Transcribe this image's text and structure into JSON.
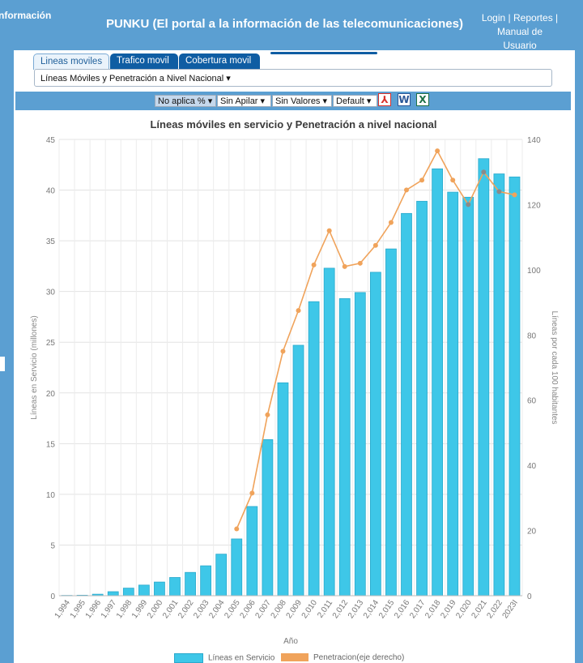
{
  "header": {
    "brand": "nformación",
    "title": "PUNKU (El portal a la información de las telecomunicaciones)",
    "links": [
      "Login",
      "Reportes",
      "Manual de Usuario"
    ]
  },
  "tabs": [
    {
      "label": "Lineas moviles",
      "active": true
    },
    {
      "label": "Trafico movil",
      "active": false
    },
    {
      "label": "Cobertura movil",
      "active": false
    }
  ],
  "report_dropdown": {
    "value": "Líneas Móviles y Penetración a Nivel Nacional"
  },
  "toolbar": {
    "selects": [
      "No aplica %",
      "Sin Apilar",
      "Sin Valores",
      "Default"
    ],
    "exports": [
      {
        "icon": "pdf-icon",
        "glyph": "⅄",
        "color": "#d9322b"
      },
      {
        "icon": "word-icon",
        "glyph": "W",
        "color": "#2b5797"
      },
      {
        "icon": "excel-icon",
        "glyph": "X",
        "color": "#1e7145"
      }
    ]
  },
  "chart_data": {
    "type": "bar",
    "title": "Líneas móviles en servicio y Penetración a nivel nacional",
    "xlabel": "Año",
    "ylabel": "Líneas en Servicio (millones)",
    "y2label": "Líneas por cada 100 habitantes",
    "categories": [
      "1,994",
      "1,995",
      "1,996",
      "1,997",
      "1,998",
      "1,999",
      "2,000",
      "2,001",
      "2,002",
      "2,003",
      "2,004",
      "2,005",
      "2,006",
      "2,007",
      "2,008",
      "2,009",
      "2,010",
      "2,011",
      "2,012",
      "2,013",
      "2,014",
      "2,015",
      "2,016",
      "2,017",
      "2,018",
      "2,019",
      "2,020",
      "2,021",
      "2,022",
      "2023I"
    ],
    "ylim": [
      0,
      45
    ],
    "yticks": [
      0,
      5,
      10,
      15,
      20,
      25,
      30,
      35,
      40,
      45
    ],
    "y2lim": [
      0,
      140
    ],
    "y2ticks": [
      0,
      20,
      40,
      60,
      80,
      100,
      120,
      140
    ],
    "series": [
      {
        "name": "Líneas en Servicio",
        "type": "bar",
        "axis": "left",
        "color": "#3ec7e8",
        "values": [
          0.03,
          0.05,
          0.15,
          0.4,
          0.75,
          1.05,
          1.35,
          1.8,
          2.3,
          2.95,
          4.1,
          5.6,
          8.8,
          15.4,
          21.0,
          24.7,
          29.0,
          32.3,
          29.3,
          29.9,
          31.9,
          34.2,
          37.7,
          38.9,
          42.1,
          39.8,
          39.3,
          43.1,
          41.6,
          41.3
        ]
      },
      {
        "name": "Penetracion(eje derecho)",
        "type": "line",
        "axis": "right",
        "color": "#f0a35b",
        "values": [
          null,
          null,
          null,
          null,
          null,
          null,
          null,
          null,
          null,
          null,
          null,
          20.5,
          31.5,
          55.5,
          75.0,
          87.5,
          101.5,
          112.0,
          101.0,
          102.0,
          107.5,
          114.5,
          124.5,
          127.5,
          136.5,
          127.5,
          120.0,
          130.0,
          124.0,
          123.0
        ]
      }
    ],
    "grid": true,
    "legend": "bottom"
  }
}
